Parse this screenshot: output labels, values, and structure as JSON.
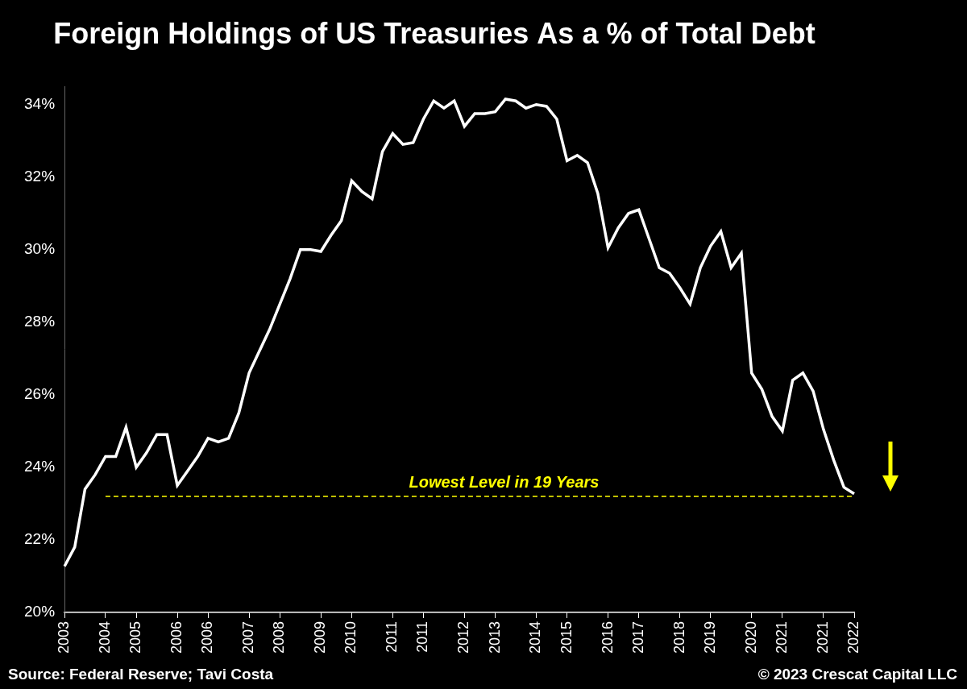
{
  "chart_data": {
    "type": "line",
    "title": "Foreign Holdings of US Treasuries As a % of Total Debt",
    "categories": [
      "2003",
      null,
      null,
      null,
      "2004",
      null,
      null,
      "2005",
      null,
      null,
      null,
      "2006",
      null,
      null,
      "2006",
      null,
      null,
      null,
      "2007",
      null,
      null,
      "2008",
      null,
      null,
      null,
      "2009",
      null,
      null,
      "2010",
      null,
      null,
      null,
      "2011",
      null,
      null,
      "2011",
      null,
      null,
      null,
      "2012",
      null,
      null,
      "2013",
      null,
      null,
      null,
      "2014",
      null,
      null,
      "2015",
      null,
      null,
      null,
      "2016",
      null,
      null,
      "2017",
      null,
      null,
      null,
      "2018",
      null,
      null,
      "2019",
      null,
      null,
      null,
      "2020",
      null,
      null,
      "2021",
      null,
      null,
      null,
      "2021",
      null,
      null,
      "2022"
    ],
    "values": [
      21.27,
      21.8,
      23.4,
      23.8,
      24.3,
      24.3,
      25.1,
      24.0,
      24.4,
      24.9,
      24.9,
      23.5,
      23.9,
      24.3,
      24.8,
      24.7,
      24.8,
      25.5,
      26.6,
      27.2,
      27.8,
      28.5,
      29.2,
      30.0,
      30.0,
      29.95,
      30.4,
      30.8,
      31.9,
      31.6,
      31.4,
      32.7,
      33.2,
      32.9,
      32.95,
      33.6,
      34.1,
      33.9,
      34.1,
      33.4,
      33.75,
      33.75,
      33.8,
      34.15,
      34.1,
      33.9,
      34.0,
      33.95,
      33.6,
      32.45,
      32.6,
      32.4,
      31.55,
      30.05,
      30.6,
      31.0,
      31.1,
      30.3,
      29.5,
      29.35,
      28.95,
      28.5,
      29.5,
      30.1,
      30.5,
      29.5,
      29.9,
      26.6,
      26.15,
      25.4,
      25.0,
      26.4,
      26.6,
      26.1,
      25.05,
      24.2,
      23.45,
      23.27
    ],
    "color": "#ffffff",
    "ylim": [
      20,
      34.5
    ],
    "yticks": [
      {
        "value": 20,
        "label": "20%"
      },
      {
        "value": 22,
        "label": "22%"
      },
      {
        "value": 24,
        "label": "24%"
      },
      {
        "value": 26,
        "label": "26%"
      },
      {
        "value": 28,
        "label": "28%"
      },
      {
        "value": 30,
        "label": "30%"
      },
      {
        "value": 32,
        "label": "32%"
      },
      {
        "value": 34,
        "label": "34%"
      }
    ],
    "grid": false,
    "annotations": [
      {
        "text": "Lowest Level in 19 Years",
        "value": 23.2,
        "from": "2004",
        "color": "#ffff00",
        "line_style": "dashed"
      }
    ],
    "source": "Source: Federal Reserve; Tavi Costa",
    "credit": "© 2023 Crescat Capital LLC"
  }
}
